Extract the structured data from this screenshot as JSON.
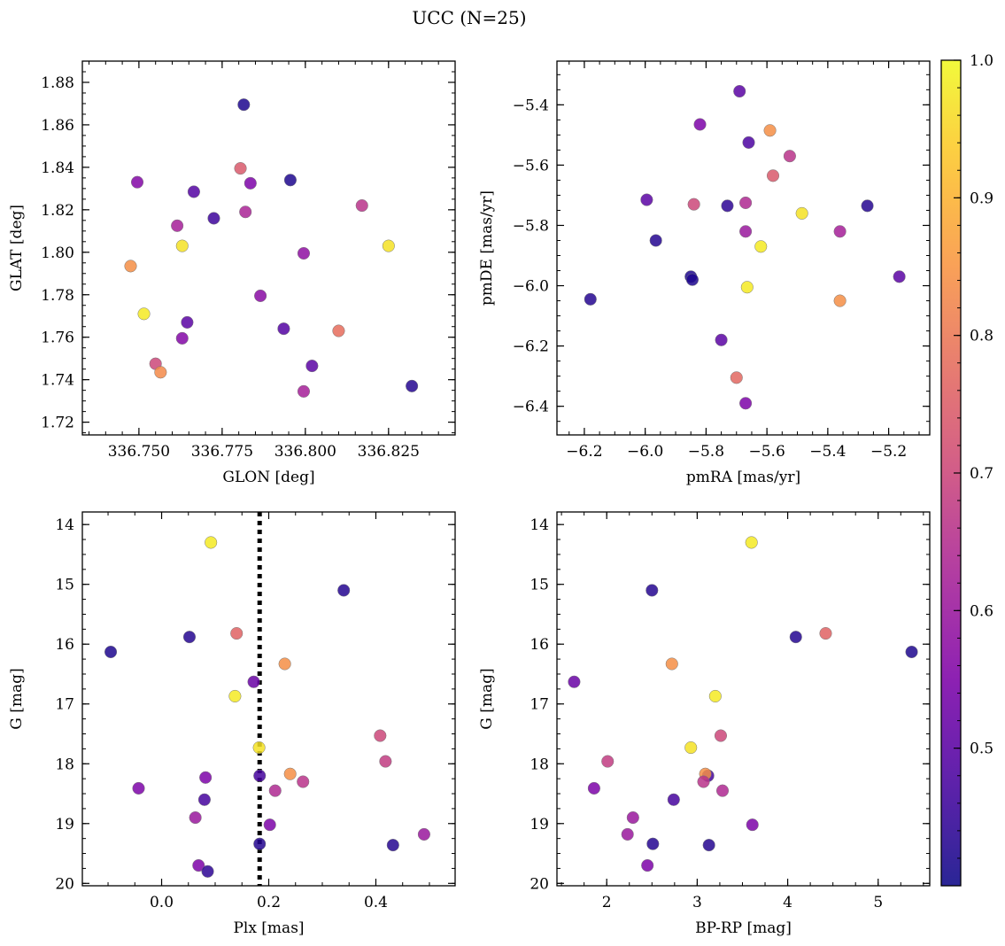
{
  "figure_title": "UCC (N=25)",
  "colorbar": {
    "colormap": "plasma",
    "range": [
      0.4,
      1.0
    ],
    "ticks": [
      0.5,
      0.6,
      0.7,
      0.8,
      0.9,
      1.0
    ],
    "tick_labels": [
      "0.5",
      "0.6",
      "0.7",
      "0.8",
      "0.9",
      "1.0"
    ]
  },
  "chart_data": [
    {
      "type": "scatter",
      "id": "glon-glat",
      "xlabel": "GLON [deg]",
      "ylabel": "GLAT [deg]",
      "xlim": [
        336.733,
        336.845
      ],
      "ylim": [
        1.714,
        1.89
      ],
      "x_invert": false,
      "y_invert": false,
      "xticks": [
        336.75,
        336.775,
        336.8,
        336.825
      ],
      "xtick_labels": [
        "336.750",
        "336.775",
        "336.800",
        "336.825"
      ],
      "yticks": [
        1.72,
        1.74,
        1.76,
        1.78,
        1.8,
        1.82,
        1.84,
        1.86,
        1.88
      ],
      "ytick_labels": [
        "1.72",
        "1.74",
        "1.76",
        "1.78",
        "1.80",
        "1.82",
        "1.84",
        "1.86",
        "1.88"
      ],
      "x_minor_step": 0.005,
      "y_minor_step": 0.005,
      "points": [
        {
          "x": 336.7815,
          "y": 1.8695,
          "c": 0.42
        },
        {
          "x": 336.7495,
          "y": 1.833,
          "c": 0.56
        },
        {
          "x": 336.7665,
          "y": 1.8285,
          "c": 0.49
        },
        {
          "x": 336.7805,
          "y": 1.8395,
          "c": 0.74
        },
        {
          "x": 336.7835,
          "y": 1.8325,
          "c": 0.55
        },
        {
          "x": 336.7955,
          "y": 1.834,
          "c": 0.42
        },
        {
          "x": 336.7725,
          "y": 1.816,
          "c": 0.46
        },
        {
          "x": 336.7615,
          "y": 1.8125,
          "c": 0.62
        },
        {
          "x": 336.782,
          "y": 1.819,
          "c": 0.63
        },
        {
          "x": 336.817,
          "y": 1.822,
          "c": 0.66
        },
        {
          "x": 336.763,
          "y": 1.803,
          "c": 0.97
        },
        {
          "x": 336.825,
          "y": 1.803,
          "c": 0.97
        },
        {
          "x": 336.7475,
          "y": 1.7935,
          "c": 0.84
        },
        {
          "x": 336.7995,
          "y": 1.7995,
          "c": 0.58
        },
        {
          "x": 336.7515,
          "y": 1.771,
          "c": 0.98
        },
        {
          "x": 336.7865,
          "y": 1.7795,
          "c": 0.57
        },
        {
          "x": 336.7645,
          "y": 1.767,
          "c": 0.5
        },
        {
          "x": 336.763,
          "y": 1.7595,
          "c": 0.56
        },
        {
          "x": 336.7935,
          "y": 1.764,
          "c": 0.49
        },
        {
          "x": 336.81,
          "y": 1.763,
          "c": 0.78
        },
        {
          "x": 336.755,
          "y": 1.7475,
          "c": 0.7
        },
        {
          "x": 336.7565,
          "y": 1.7435,
          "c": 0.83
        },
        {
          "x": 336.802,
          "y": 1.7465,
          "c": 0.5
        },
        {
          "x": 336.7995,
          "y": 1.7345,
          "c": 0.62
        },
        {
          "x": 336.832,
          "y": 1.737,
          "c": 0.43
        }
      ]
    },
    {
      "type": "scatter",
      "id": "pmra-pmde",
      "xlabel": "pmRA [mas/yr]",
      "ylabel": "pmDE [mas/yr]",
      "xlim": [
        -6.29,
        -5.065
      ],
      "ylim": [
        -6.495,
        -5.255
      ],
      "x_invert": false,
      "y_invert": false,
      "xticks": [
        -6.2,
        -6.0,
        -5.8,
        -5.6,
        -5.4,
        -5.2
      ],
      "xtick_labels": [
        "−6.2",
        "−6.0",
        "−5.8",
        "−5.6",
        "−5.4",
        "−5.2"
      ],
      "yticks": [
        -6.4,
        -6.2,
        -6.0,
        -5.8,
        -5.6,
        -5.4
      ],
      "ytick_labels": [
        "−6.4",
        "−6.2",
        "−6.0",
        "−5.8",
        "−5.6",
        "−5.4"
      ],
      "x_minor_step": 0.05,
      "y_minor_step": 0.05,
      "points": [
        {
          "x": -5.69,
          "y": -5.355,
          "c": 0.5
        },
        {
          "x": -5.82,
          "y": -5.465,
          "c": 0.55
        },
        {
          "x": -5.59,
          "y": -5.485,
          "c": 0.84
        },
        {
          "x": -5.66,
          "y": -5.525,
          "c": 0.48
        },
        {
          "x": -5.525,
          "y": -5.57,
          "c": 0.66
        },
        {
          "x": -5.58,
          "y": -5.635,
          "c": 0.74
        },
        {
          "x": -5.995,
          "y": -5.715,
          "c": 0.5
        },
        {
          "x": -5.84,
          "y": -5.73,
          "c": 0.7
        },
        {
          "x": -5.73,
          "y": -5.735,
          "c": 0.44
        },
        {
          "x": -5.67,
          "y": -5.725,
          "c": 0.64
        },
        {
          "x": -5.27,
          "y": -5.735,
          "c": 0.43
        },
        {
          "x": -5.485,
          "y": -5.76,
          "c": 0.97
        },
        {
          "x": -5.965,
          "y": -5.85,
          "c": 0.43
        },
        {
          "x": -5.67,
          "y": -5.82,
          "c": 0.6
        },
        {
          "x": -5.36,
          "y": -5.82,
          "c": 0.62
        },
        {
          "x": -5.62,
          "y": -5.87,
          "c": 0.98
        },
        {
          "x": -5.85,
          "y": -5.97,
          "c": 0.42
        },
        {
          "x": -5.845,
          "y": -5.98,
          "c": 0.42
        },
        {
          "x": -5.165,
          "y": -5.97,
          "c": 0.5
        },
        {
          "x": -5.665,
          "y": -6.005,
          "c": 0.98
        },
        {
          "x": -5.36,
          "y": -6.05,
          "c": 0.84
        },
        {
          "x": -6.18,
          "y": -6.045,
          "c": 0.43
        },
        {
          "x": -5.75,
          "y": -6.18,
          "c": 0.5
        },
        {
          "x": -5.7,
          "y": -6.305,
          "c": 0.77
        },
        {
          "x": -5.67,
          "y": -6.39,
          "c": 0.55
        }
      ]
    },
    {
      "type": "scatter",
      "id": "plx-g",
      "xlabel": "Plx [mas]",
      "ylabel": "G [mag]",
      "xlim": [
        -0.148,
        0.548
      ],
      "ylim": [
        20.04,
        13.79
      ],
      "x_invert": false,
      "y_invert": true,
      "xticks": [
        0.0,
        0.2,
        0.4
      ],
      "xtick_labels": [
        "0.0",
        "0.2",
        "0.4"
      ],
      "yticks": [
        14,
        15,
        16,
        17,
        18,
        19,
        20
      ],
      "ytick_labels": [
        "14",
        "15",
        "16",
        "17",
        "18",
        "19",
        "20"
      ],
      "x_minor_step": 0.05,
      "y_minor_step": 0.25,
      "vline": {
        "x": 0.183,
        "style": "dotted"
      },
      "points": [
        {
          "x": 0.092,
          "y": 14.3,
          "c": 0.98
        },
        {
          "x": 0.34,
          "y": 15.1,
          "c": 0.43
        },
        {
          "x": 0.14,
          "y": 15.82,
          "c": 0.76
        },
        {
          "x": 0.052,
          "y": 15.88,
          "c": 0.43
        },
        {
          "x": -0.095,
          "y": 16.13,
          "c": 0.42
        },
        {
          "x": 0.23,
          "y": 16.33,
          "c": 0.84
        },
        {
          "x": 0.172,
          "y": 16.63,
          "c": 0.52
        },
        {
          "x": 0.137,
          "y": 16.87,
          "c": 0.98
        },
        {
          "x": 0.408,
          "y": 17.53,
          "c": 0.7
        },
        {
          "x": 0.182,
          "y": 17.73,
          "c": 0.97
        },
        {
          "x": 0.418,
          "y": 17.96,
          "c": 0.68
        },
        {
          "x": 0.24,
          "y": 18.17,
          "c": 0.84
        },
        {
          "x": 0.183,
          "y": 18.2,
          "c": 0.47
        },
        {
          "x": 0.082,
          "y": 18.23,
          "c": 0.55
        },
        {
          "x": 0.264,
          "y": 18.3,
          "c": 0.66
        },
        {
          "x": -0.043,
          "y": 18.41,
          "c": 0.55
        },
        {
          "x": 0.212,
          "y": 18.45,
          "c": 0.64
        },
        {
          "x": 0.08,
          "y": 18.6,
          "c": 0.47
        },
        {
          "x": 0.063,
          "y": 18.9,
          "c": 0.6
        },
        {
          "x": 0.202,
          "y": 19.02,
          "c": 0.55
        },
        {
          "x": 0.49,
          "y": 19.18,
          "c": 0.6
        },
        {
          "x": 0.183,
          "y": 19.34,
          "c": 0.43
        },
        {
          "x": 0.432,
          "y": 19.36,
          "c": 0.43
        },
        {
          "x": 0.069,
          "y": 19.7,
          "c": 0.55
        },
        {
          "x": 0.086,
          "y": 19.8,
          "c": 0.44
        }
      ]
    },
    {
      "type": "scatter",
      "id": "bprp-g",
      "xlabel": "BP-RP [mag]",
      "ylabel": "G [mag]",
      "xlim": [
        1.45,
        5.57
      ],
      "ylim": [
        20.04,
        13.79
      ],
      "x_invert": false,
      "y_invert": true,
      "xticks": [
        2,
        3,
        4,
        5
      ],
      "xtick_labels": [
        "2",
        "3",
        "4",
        "5"
      ],
      "yticks": [
        14,
        15,
        16,
        17,
        18,
        19,
        20
      ],
      "ytick_labels": [
        "14",
        "15",
        "16",
        "17",
        "18",
        "19",
        "20"
      ],
      "x_minor_step": 0.25,
      "y_minor_step": 0.25,
      "points": [
        {
          "x": 3.6,
          "y": 14.3,
          "c": 0.98
        },
        {
          "x": 2.5,
          "y": 15.1,
          "c": 0.43
        },
        {
          "x": 4.42,
          "y": 15.82,
          "c": 0.76
        },
        {
          "x": 4.09,
          "y": 15.88,
          "c": 0.43
        },
        {
          "x": 5.37,
          "y": 16.13,
          "c": 0.42
        },
        {
          "x": 2.72,
          "y": 16.33,
          "c": 0.84
        },
        {
          "x": 1.64,
          "y": 16.63,
          "c": 0.52
        },
        {
          "x": 3.2,
          "y": 16.87,
          "c": 0.98
        },
        {
          "x": 3.26,
          "y": 17.53,
          "c": 0.7
        },
        {
          "x": 2.93,
          "y": 17.73,
          "c": 0.97
        },
        {
          "x": 2.01,
          "y": 17.96,
          "c": 0.68
        },
        {
          "x": 3.12,
          "y": 18.2,
          "c": 0.47
        },
        {
          "x": 3.09,
          "y": 18.17,
          "c": 0.84
        },
        {
          "x": 3.07,
          "y": 18.3,
          "c": 0.66
        },
        {
          "x": 1.86,
          "y": 18.41,
          "c": 0.55
        },
        {
          "x": 3.28,
          "y": 18.45,
          "c": 0.64
        },
        {
          "x": 2.74,
          "y": 18.6,
          "c": 0.47
        },
        {
          "x": 2.29,
          "y": 18.9,
          "c": 0.6
        },
        {
          "x": 3.61,
          "y": 19.02,
          "c": 0.55
        },
        {
          "x": 2.23,
          "y": 19.18,
          "c": 0.6
        },
        {
          "x": 2.51,
          "y": 19.34,
          "c": 0.43
        },
        {
          "x": 3.13,
          "y": 19.36,
          "c": 0.43
        },
        {
          "x": 2.45,
          "y": 19.7,
          "c": 0.55
        }
      ]
    }
  ]
}
